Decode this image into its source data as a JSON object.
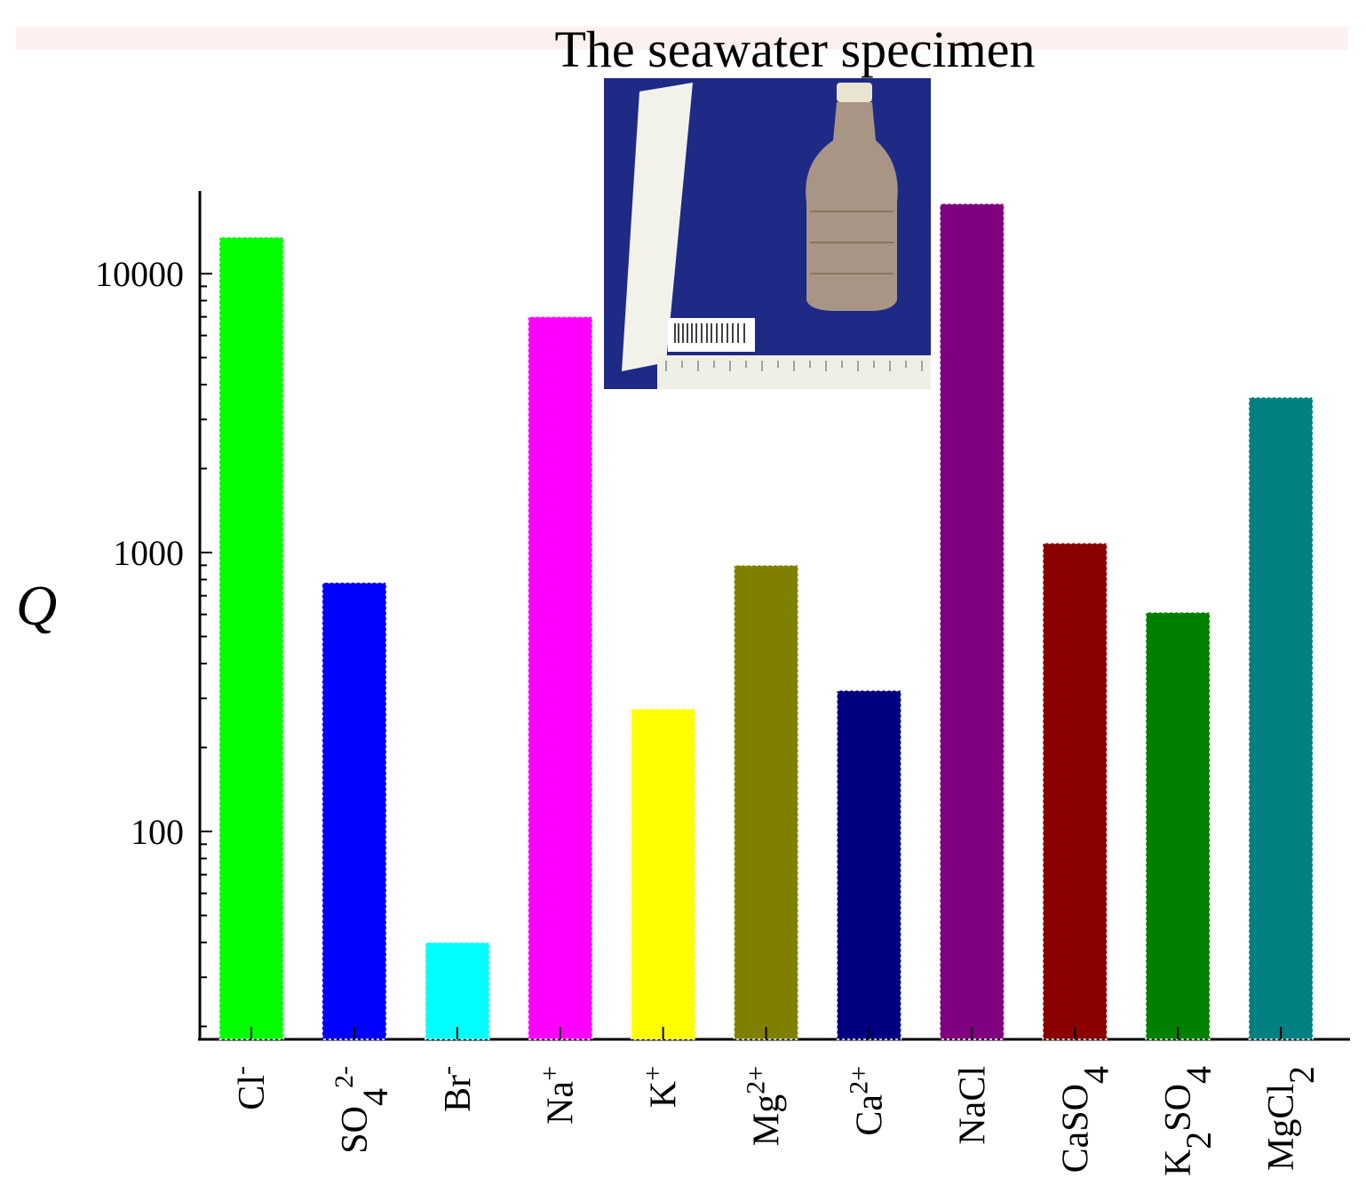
{
  "chart_data": {
    "type": "bar",
    "title": "The seawater specimen",
    "xlabel": "",
    "ylabel": "Q",
    "yscale": "log",
    "ylim": [
      20,
      20000
    ],
    "yticks": [
      "10000",
      "1000",
      "100"
    ],
    "categories": [
      {
        "base": "Cl",
        "sup": "-",
        "sub": ""
      },
      {
        "base": "SO",
        "sup": "2-",
        "sub": "4"
      },
      {
        "base": "Br",
        "sup": "-",
        "sub": ""
      },
      {
        "base": "Na",
        "sup": "+",
        "sub": ""
      },
      {
        "base": "K",
        "sup": "+",
        "sub": ""
      },
      {
        "base": "Mg",
        "sup": "2+",
        "sub": ""
      },
      {
        "base": "Ca",
        "sup": "2+",
        "sub": ""
      },
      {
        "base": "NaCl",
        "sup": "",
        "sub": ""
      },
      {
        "base": "CaSO",
        "sup": "",
        "sub": "4"
      },
      {
        "base": "K",
        "sup": "",
        "sub": "2",
        "base2": "SO",
        "sub2": "4"
      },
      {
        "base": "MgCl",
        "sup": "",
        "sub": "2"
      }
    ],
    "values": [
      13500,
      780,
      40,
      7000,
      275,
      900,
      320,
      17800,
      1080,
      610,
      3600
    ],
    "colors": [
      "#00ff00",
      "#0000ff",
      "#00ffff",
      "#ff00ff",
      "#ffff00",
      "#808000",
      "#000080",
      "#800080",
      "#8b0000",
      "#008000",
      "#008080"
    ],
    "grid": false,
    "legend": "none"
  }
}
